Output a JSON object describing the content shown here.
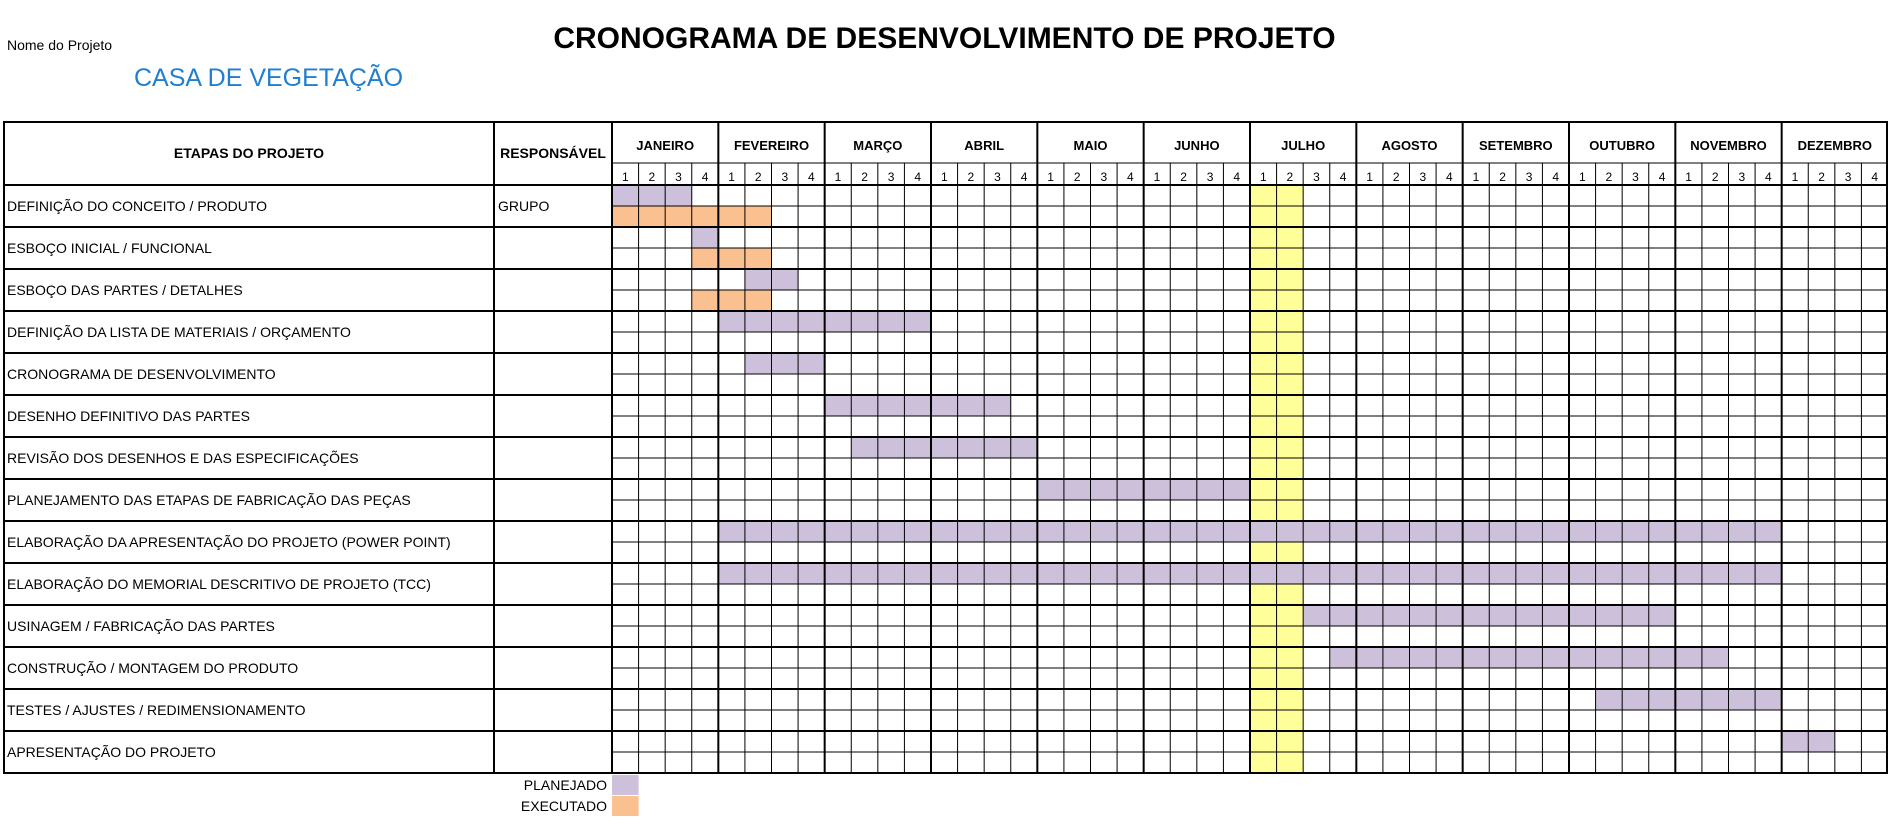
{
  "header": {
    "nome_label": "Nome do Projeto",
    "project_name": "CASA DE VEGETAÇÃO",
    "title": "CRONOGRAMA DE DESENVOLVIMENTO DE PROJETO"
  },
  "table": {
    "col_etapas": "ETAPAS DO PROJETO",
    "col_responsavel": "RESPONSÁVEL",
    "months": [
      "JANEIRO",
      "FEVEREIRO",
      "MARÇO",
      "ABRIL",
      "MAIO",
      "JUNHO",
      "JULHO",
      "AGOSTO",
      "SETEMBRO",
      "OUTUBRO",
      "NOVEMBRO",
      "DEZEMBRO"
    ],
    "weeks": [
      "1",
      "2",
      "3",
      "4"
    ],
    "highlight_weeks": [
      25,
      26
    ],
    "rows": [
      {
        "etapa": "DEFINIÇÃO DO CONCEITO / PRODUTO",
        "responsavel": "GRUPO",
        "planned": [
          [
            1,
            3
          ]
        ],
        "executed": [
          [
            1,
            6
          ]
        ]
      },
      {
        "etapa": "ESBOÇO INICIAL / FUNCIONAL",
        "responsavel": "",
        "planned": [
          [
            4,
            4
          ]
        ],
        "executed": [
          [
            4,
            6
          ]
        ]
      },
      {
        "etapa": "ESBOÇO DAS PARTES / DETALHES",
        "responsavel": "",
        "planned": [
          [
            6,
            7
          ]
        ],
        "executed": [
          [
            4,
            6
          ]
        ]
      },
      {
        "etapa": "DEFINIÇÃO DA LISTA DE MATERIAIS / ORÇAMENTO",
        "responsavel": "",
        "planned": [
          [
            5,
            12
          ]
        ],
        "executed": []
      },
      {
        "etapa": "CRONOGRAMA DE DESENVOLVIMENTO",
        "responsavel": "",
        "planned": [
          [
            6,
            8
          ]
        ],
        "executed": []
      },
      {
        "etapa": "DESENHO DEFINITIVO DAS PARTES",
        "responsavel": "",
        "planned": [
          [
            9,
            15
          ]
        ],
        "executed": []
      },
      {
        "etapa": "REVISÃO DOS DESENHOS E DAS ESPECIFICAÇÕES",
        "responsavel": "",
        "planned": [
          [
            10,
            16
          ]
        ],
        "executed": []
      },
      {
        "etapa": "PLANEJAMENTO DAS ETAPAS DE FABRICAÇÃO DAS PEÇAS",
        "responsavel": "",
        "planned": [
          [
            17,
            24
          ]
        ],
        "executed": []
      },
      {
        "etapa": "ELABORAÇÃO DA APRESENTAÇÃO DO PROJETO (POWER POINT)",
        "responsavel": "",
        "planned": [
          [
            5,
            44
          ]
        ],
        "executed": []
      },
      {
        "etapa": "ELABORAÇÃO DO MEMORIAL DESCRITIVO DE PROJETO (TCC)",
        "responsavel": "",
        "planned": [
          [
            5,
            44
          ]
        ],
        "executed": []
      },
      {
        "etapa": "USINAGEM / FABRICAÇÃO DAS PARTES",
        "responsavel": "",
        "planned": [
          [
            27,
            40
          ]
        ],
        "executed": []
      },
      {
        "etapa": "CONSTRUÇÃO / MONTAGEM DO PRODUTO",
        "responsavel": "",
        "planned": [
          [
            28,
            42
          ]
        ],
        "executed": []
      },
      {
        "etapa": "TESTES / AJUSTES / REDIMENSIONAMENTO",
        "responsavel": "",
        "planned": [
          [
            38,
            44
          ]
        ],
        "executed": []
      },
      {
        "etapa": "APRESENTAÇÃO DO PROJETO",
        "responsavel": "",
        "planned": [
          [
            45,
            46
          ]
        ],
        "executed": []
      }
    ]
  },
  "legend": {
    "planned_label": "PLANEJADO",
    "executed_label": "EXECUTADO"
  },
  "colors": {
    "planned": "#ccc0da",
    "executed": "#fac090",
    "highlight": "#ffff99",
    "project_name": "#1f7fd0"
  }
}
